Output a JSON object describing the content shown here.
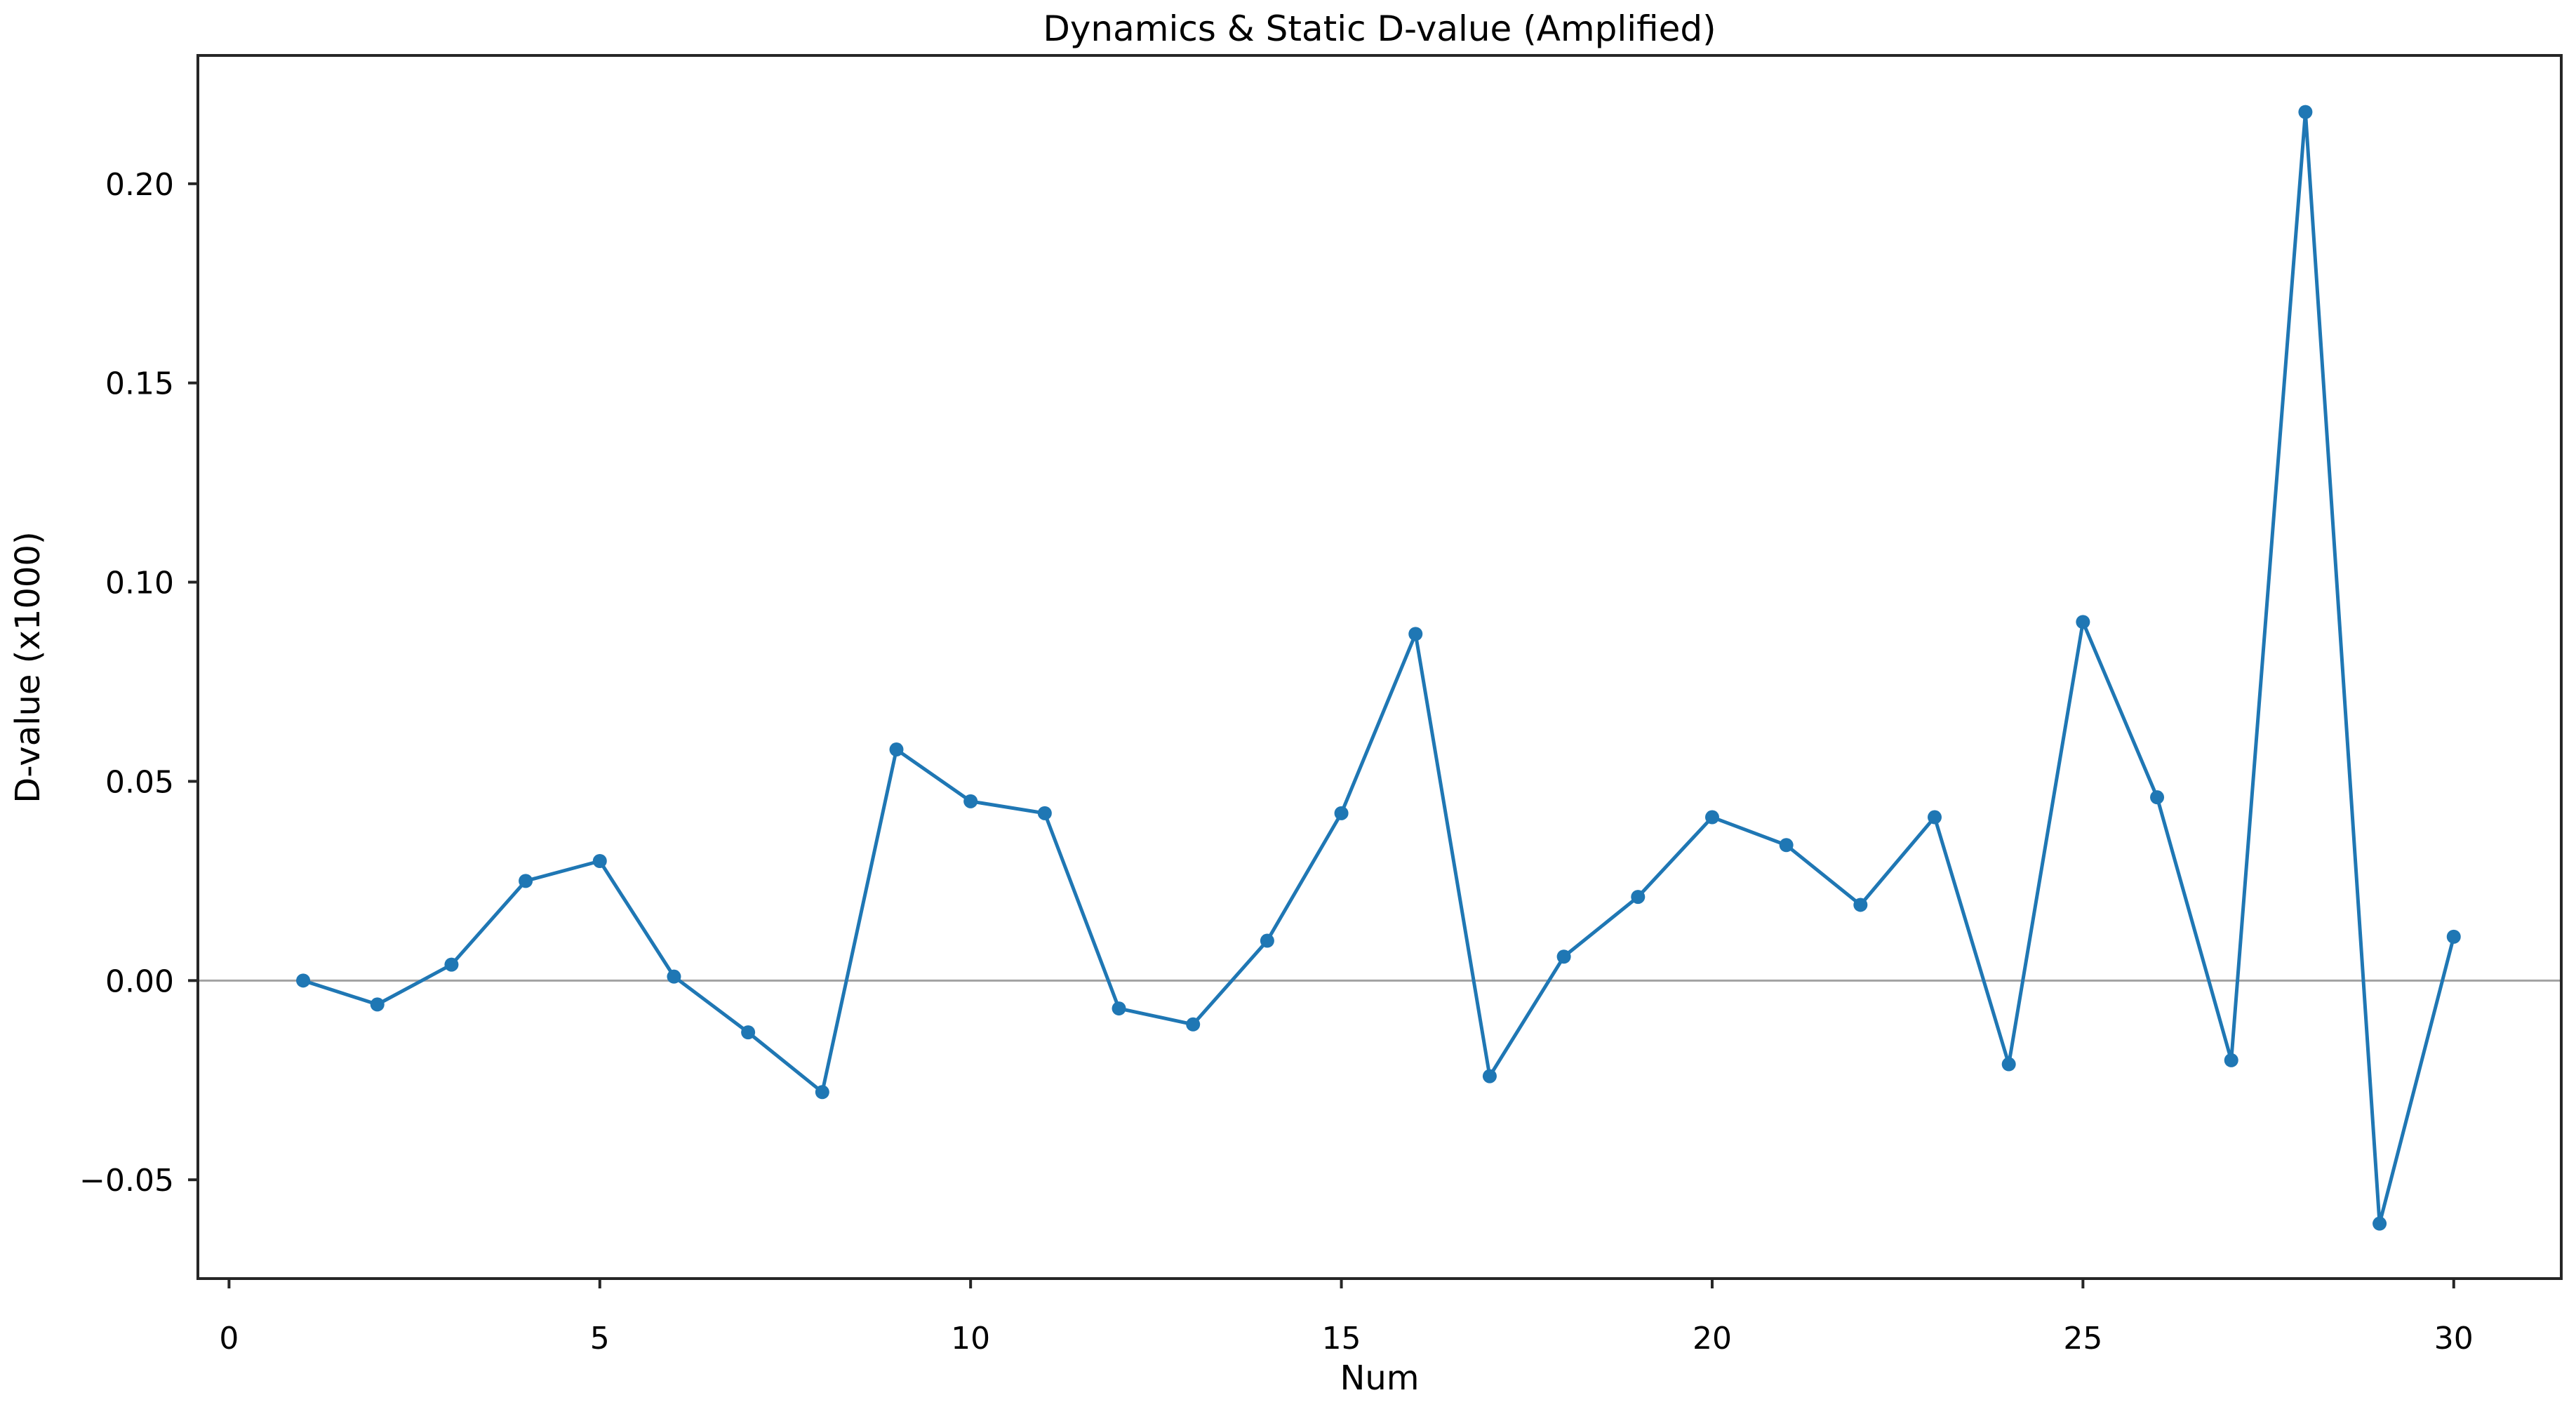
{
  "chart_data": {
    "type": "line",
    "title": "Dynamics & Static D-value (Amplified)",
    "xlabel": "Num",
    "ylabel": "D-value (x1000)",
    "x": [
      1,
      2,
      3,
      4,
      5,
      6,
      7,
      8,
      9,
      10,
      11,
      12,
      13,
      14,
      15,
      16,
      17,
      18,
      19,
      20,
      21,
      22,
      23,
      24,
      25,
      26,
      27,
      28,
      29,
      30
    ],
    "series": [
      {
        "name": "D-value",
        "color": "#1f77b4",
        "values": [
          0.0,
          -0.006,
          0.004,
          0.025,
          0.03,
          0.001,
          -0.013,
          -0.028,
          0.058,
          0.045,
          0.042,
          -0.007,
          -0.011,
          0.01,
          0.042,
          0.087,
          -0.024,
          0.006,
          0.021,
          0.041,
          0.034,
          0.019,
          0.041,
          -0.021,
          0.09,
          0.046,
          -0.02,
          0.218,
          -0.061,
          0.011
        ]
      }
    ],
    "xlim": [
      -0.42,
      31.45
    ],
    "ylim": [
      -0.0748,
      0.2322
    ],
    "xticks": [
      0,
      5,
      10,
      15,
      20,
      25,
      30
    ],
    "xtick_labels": [
      "0",
      "5",
      "10",
      "15",
      "20",
      "25",
      "30"
    ],
    "yticks": [
      -0.05,
      0.0,
      0.05,
      0.1,
      0.15,
      0.2
    ],
    "ytick_labels": [
      "−0.05",
      "0.00",
      "0.05",
      "0.10",
      "0.15",
      "0.20"
    ],
    "zero_line_y": 0,
    "zero_line_color": "#a2a2a2",
    "spine_color": "#262626",
    "grid": false,
    "legend": "none",
    "marker": "circle"
  }
}
